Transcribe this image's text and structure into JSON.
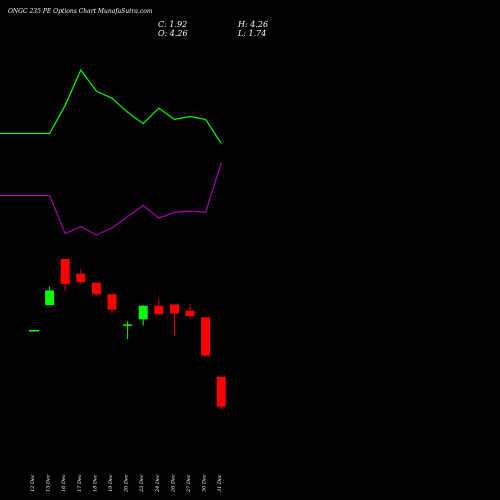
{
  "header": {
    "title": "ONGC 235 PE Options Chart MunafaSutra.com",
    "close": "C: 1.92",
    "open": "O: 4.26",
    "high": "H: 4.26",
    "low": "L: 1.74"
  },
  "colors": {
    "background": "#000000",
    "up": "#00ff00",
    "down": "#ff0000",
    "upper_band": "#00ff00",
    "lower_band": "#aa00aa"
  },
  "chart_data": {
    "type": "candlestick",
    "title": "ONGC 235 PE Options Chart MunafaSutra.com",
    "categories": [
      "12 Dec",
      "13 Dec",
      "16 Dec",
      "17 Dec",
      "18 Dec",
      "19 Dec",
      "20 Dec",
      "23 Dec",
      "24 Dec",
      "26 Dec",
      "27 Dec",
      "30 Dec",
      "31 Dec"
    ],
    "candles": [
      {
        "date": "12 Dec",
        "open": 7.85,
        "high": 7.85,
        "low": 7.85,
        "close": 7.85
      },
      {
        "date": "13 Dec",
        "open": 9.85,
        "high": 11.3,
        "low": 9.85,
        "close": 11.0
      },
      {
        "date": "16 Dec",
        "open": 13.45,
        "high": 13.45,
        "low": 10.95,
        "close": 11.5
      },
      {
        "date": "17 Dec",
        "open": 12.3,
        "high": 12.65,
        "low": 11.5,
        "close": 11.65
      },
      {
        "date": "18 Dec",
        "open": 11.6,
        "high": 11.6,
        "low": 10.6,
        "close": 10.7
      },
      {
        "date": "19 Dec",
        "open": 10.7,
        "high": 10.7,
        "low": 9.2,
        "close": 9.5
      },
      {
        "date": "20 Dec",
        "open": 8.25,
        "high": 8.6,
        "low": 7.2,
        "close": 8.35
      },
      {
        "date": "23 Dec",
        "open": 8.75,
        "high": 9.85,
        "low": 8.25,
        "close": 9.8
      },
      {
        "date": "24 Dec",
        "open": 9.8,
        "high": 10.3,
        "low": 9.05,
        "close": 9.15
      },
      {
        "date": "26 Dec",
        "open": 9.9,
        "high": 9.9,
        "low": 7.5,
        "close": 9.2
      },
      {
        "date": "27 Dec",
        "open": 9.4,
        "high": 9.9,
        "low": 8.8,
        "close": 9.0
      },
      {
        "date": "30 Dec",
        "open": 8.9,
        "high": 8.9,
        "low": 5.9,
        "close": 5.9
      },
      {
        "date": "31 Dec",
        "open": 4.26,
        "high": 4.26,
        "low": 1.74,
        "close": 1.92
      }
    ],
    "upper_band": [
      20.5,
      20.5,
      22.5,
      25.0,
      23.5,
      23.0,
      22.0,
      21.2,
      22.3,
      21.5,
      21.7,
      21.5,
      19.8
    ],
    "lower_band": [
      16.1,
      16.1,
      13.4,
      13.9,
      13.3,
      13.8,
      14.6,
      15.4,
      14.5,
      14.9,
      15.0,
      14.9,
      18.4
    ]
  }
}
